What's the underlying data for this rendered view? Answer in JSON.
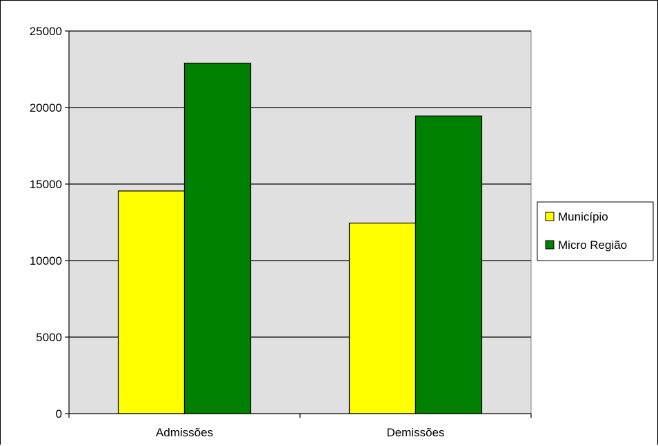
{
  "chart_data": {
    "type": "bar",
    "title": "",
    "xlabel": "",
    "ylabel": "",
    "categories": [
      "Admissões",
      "Demissões"
    ],
    "series": [
      {
        "name": "Município",
        "values": [
          14550,
          12450
        ],
        "color": "#ffff00"
      },
      {
        "name": "Micro Região",
        "values": [
          22900,
          19450
        ],
        "color": "#008000"
      }
    ],
    "ylim": [
      0,
      25000
    ],
    "yticks": [
      0,
      5000,
      10000,
      15000,
      20000,
      25000
    ],
    "ytick_labels": [
      "0",
      "5000",
      "10000",
      "15000",
      "20000",
      "25000"
    ],
    "grid": true,
    "legend": "right",
    "plot_background": "#e0e0e0"
  }
}
